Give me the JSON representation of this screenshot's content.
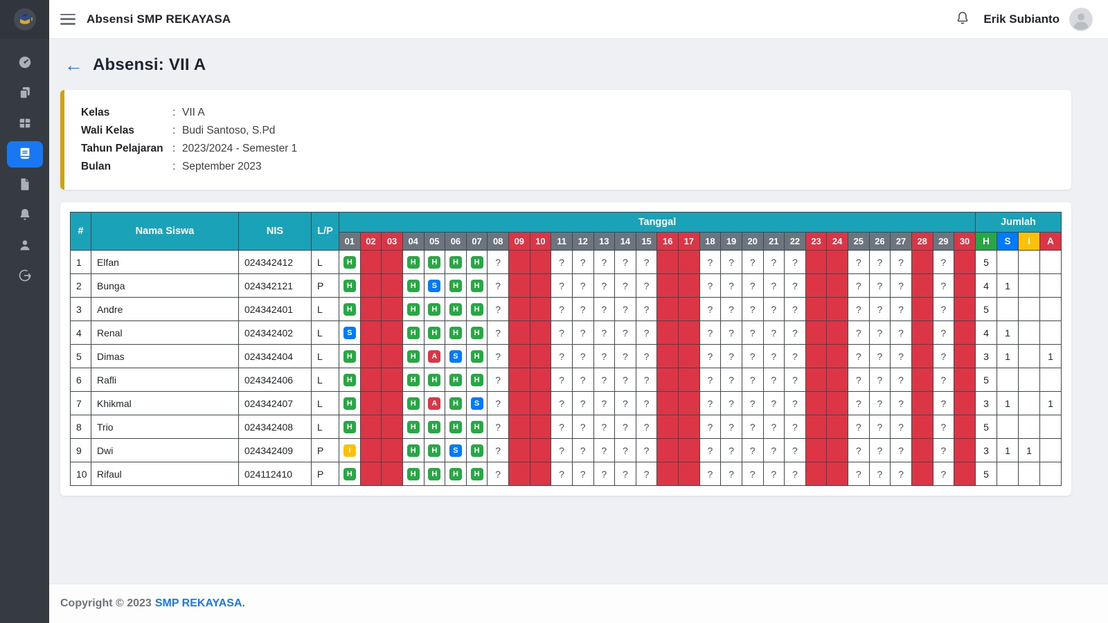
{
  "app": {
    "title": "Absensi SMP REKAYASA",
    "user_name": "Erik Subianto"
  },
  "sidebar": {
    "logo_icon": "school-logo-icon",
    "items": [
      {
        "id": "dashboard",
        "icon": "gauge-icon",
        "active": false
      },
      {
        "id": "data",
        "icon": "copy-icon",
        "active": false
      },
      {
        "id": "kelas",
        "icon": "grid-icon",
        "active": false
      },
      {
        "id": "absensi",
        "icon": "book-icon",
        "active": true
      },
      {
        "id": "laporan",
        "icon": "file-icon",
        "active": false
      },
      {
        "id": "notifikasi",
        "icon": "bell-icon",
        "active": false
      },
      {
        "id": "profil",
        "icon": "user-icon",
        "active": false
      },
      {
        "id": "logout",
        "icon": "logout-icon",
        "active": false
      }
    ]
  },
  "page": {
    "back_icon": "←",
    "title": "Absensi: VII A"
  },
  "info": {
    "separator": ":",
    "rows": [
      {
        "label": "Kelas",
        "value": "VII A"
      },
      {
        "label": "Wali Kelas",
        "value": "Budi Santoso, S.Pd"
      },
      {
        "label": "Tahun Pelajaran",
        "value": "2023/2024 - Semester 1"
      },
      {
        "label": "Bulan",
        "value": "September 2023"
      }
    ]
  },
  "table": {
    "headers": {
      "no": "#",
      "name": "Nama Siswa",
      "nis": "NIS",
      "gender": "L/P",
      "dates_group": "Tanggal",
      "totals_group": "Jumlah"
    },
    "unknown_mark": "?",
    "colors": {
      "header_teal": "#1aa3b8",
      "day_gray": "#6c757d",
      "holiday_red": "#dc3545"
    },
    "status_colors": {
      "H": "#28a745",
      "S": "#007bff",
      "I": "#ffc107",
      "A": "#dc3545"
    },
    "totals_columns": [
      {
        "key": "H",
        "color": "#28a745"
      },
      {
        "key": "S",
        "color": "#007bff"
      },
      {
        "key": "I",
        "color": "#ffc107"
      },
      {
        "key": "A",
        "color": "#dc3545"
      }
    ],
    "dates": [
      {
        "day": "01",
        "holiday": false
      },
      {
        "day": "02",
        "holiday": true
      },
      {
        "day": "03",
        "holiday": true
      },
      {
        "day": "04",
        "holiday": false
      },
      {
        "day": "05",
        "holiday": false
      },
      {
        "day": "06",
        "holiday": false
      },
      {
        "day": "07",
        "holiday": false
      },
      {
        "day": "08",
        "holiday": false
      },
      {
        "day": "09",
        "holiday": true
      },
      {
        "day": "10",
        "holiday": true
      },
      {
        "day": "11",
        "holiday": false
      },
      {
        "day": "12",
        "holiday": false
      },
      {
        "day": "13",
        "holiday": false
      },
      {
        "day": "14",
        "holiday": false
      },
      {
        "day": "15",
        "holiday": false
      },
      {
        "day": "16",
        "holiday": true
      },
      {
        "day": "17",
        "holiday": true
      },
      {
        "day": "18",
        "holiday": false
      },
      {
        "day": "19",
        "holiday": false
      },
      {
        "day": "20",
        "holiday": false
      },
      {
        "day": "21",
        "holiday": false
      },
      {
        "day": "22",
        "holiday": false
      },
      {
        "day": "23",
        "holiday": true
      },
      {
        "day": "24",
        "holiday": true
      },
      {
        "day": "25",
        "holiday": false
      },
      {
        "day": "26",
        "holiday": false
      },
      {
        "day": "27",
        "holiday": false
      },
      {
        "day": "28",
        "holiday": true
      },
      {
        "day": "29",
        "holiday": false
      },
      {
        "day": "30",
        "holiday": true
      }
    ],
    "students": [
      {
        "no": "1",
        "name": "Elfan",
        "nis": "024342412",
        "gender": "L",
        "attendance": {
          "01": "H",
          "04": "H",
          "05": "H",
          "06": "H",
          "07": "H"
        },
        "totals": {
          "H": "5",
          "S": "",
          "I": "",
          "A": ""
        }
      },
      {
        "no": "2",
        "name": "Bunga",
        "nis": "024342121",
        "gender": "P",
        "attendance": {
          "01": "H",
          "04": "H",
          "05": "S",
          "06": "H",
          "07": "H"
        },
        "totals": {
          "H": "4",
          "S": "1",
          "I": "",
          "A": ""
        }
      },
      {
        "no": "3",
        "name": "Andre",
        "nis": "024342401",
        "gender": "L",
        "attendance": {
          "01": "H",
          "04": "H",
          "05": "H",
          "06": "H",
          "07": "H"
        },
        "totals": {
          "H": "5",
          "S": "",
          "I": "",
          "A": ""
        }
      },
      {
        "no": "4",
        "name": "Renal",
        "nis": "024342402",
        "gender": "L",
        "attendance": {
          "01": "S",
          "04": "H",
          "05": "H",
          "06": "H",
          "07": "H"
        },
        "totals": {
          "H": "4",
          "S": "1",
          "I": "",
          "A": ""
        }
      },
      {
        "no": "5",
        "name": "Dimas",
        "nis": "024342404",
        "gender": "L",
        "attendance": {
          "01": "H",
          "04": "H",
          "05": "A",
          "06": "S",
          "07": "H"
        },
        "totals": {
          "H": "3",
          "S": "1",
          "I": "",
          "A": "1"
        }
      },
      {
        "no": "6",
        "name": "Rafli",
        "nis": "024342406",
        "gender": "L",
        "attendance": {
          "01": "H",
          "04": "H",
          "05": "H",
          "06": "H",
          "07": "H"
        },
        "totals": {
          "H": "5",
          "S": "",
          "I": "",
          "A": ""
        }
      },
      {
        "no": "7",
        "name": "Khikmal",
        "nis": "024342407",
        "gender": "L",
        "attendance": {
          "01": "H",
          "04": "H",
          "05": "A",
          "06": "H",
          "07": "S"
        },
        "totals": {
          "H": "3",
          "S": "1",
          "I": "",
          "A": "1"
        }
      },
      {
        "no": "8",
        "name": "Trio",
        "nis": "024342408",
        "gender": "L",
        "attendance": {
          "01": "H",
          "04": "H",
          "05": "H",
          "06": "H",
          "07": "H"
        },
        "totals": {
          "H": "5",
          "S": "",
          "I": "",
          "A": ""
        }
      },
      {
        "no": "9",
        "name": "Dwi",
        "nis": "024342409",
        "gender": "P",
        "attendance": {
          "01": "I",
          "04": "H",
          "05": "H",
          "06": "S",
          "07": "H"
        },
        "totals": {
          "H": "3",
          "S": "1",
          "I": "1",
          "A": ""
        }
      },
      {
        "no": "10",
        "name": "Rifaul",
        "nis": "024112410",
        "gender": "P",
        "attendance": {
          "01": "H",
          "04": "H",
          "05": "H",
          "06": "H",
          "07": "H"
        },
        "totals": {
          "H": "5",
          "S": "",
          "I": "",
          "A": ""
        }
      }
    ]
  },
  "footer": {
    "prefix": "Copyright © 2023",
    "link": "SMP REKAYASA",
    "suffix": "."
  }
}
